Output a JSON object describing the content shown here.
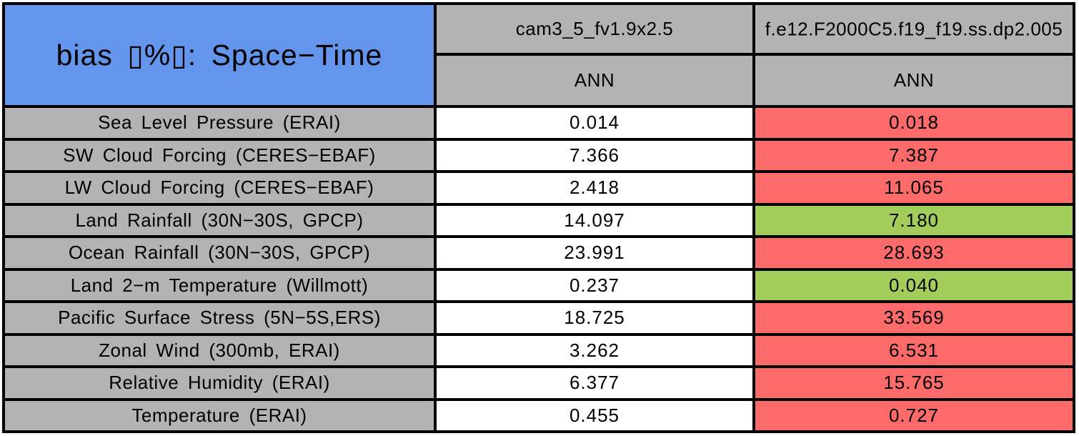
{
  "palette": {
    "header_blue": "#6495ED",
    "label_gray": "#B3B3B3",
    "bad_red": "#FC6A6A",
    "good_green": "#A2CD5A",
    "value_white": "#FFFFFF",
    "grid_black": "#000000"
  },
  "header": {
    "title": "bias ▯%▯: Space−Time",
    "columns": [
      {
        "model": "cam3_5_fv1.9x2.5",
        "season": "ANN"
      },
      {
        "model": "f.e12.F2000C5.f19_f19.ss.dp2.005",
        "season": "ANN"
      }
    ]
  },
  "rows": [
    {
      "label": "Sea Level Pressure (ERAI)",
      "cells": [
        {
          "text": "0.014",
          "bg": "#FFFFFF"
        },
        {
          "text": "0.018",
          "bg": "#FC6A6A"
        }
      ]
    },
    {
      "label": "SW Cloud Forcing (CERES−EBAF)",
      "cells": [
        {
          "text": "7.366",
          "bg": "#FFFFFF"
        },
        {
          "text": "7.387",
          "bg": "#FC6A6A"
        }
      ]
    },
    {
      "label": "LW Cloud Forcing (CERES−EBAF)",
      "cells": [
        {
          "text": "2.418",
          "bg": "#FFFFFF"
        },
        {
          "text": "11.065",
          "bg": "#FC6A6A"
        }
      ]
    },
    {
      "label": "Land Rainfall (30N−30S, GPCP)",
      "cells": [
        {
          "text": "14.097",
          "bg": "#FFFFFF"
        },
        {
          "text": "7.180",
          "bg": "#A2CD5A"
        }
      ]
    },
    {
      "label": "Ocean Rainfall (30N−30S, GPCP)",
      "cells": [
        {
          "text": "23.991",
          "bg": "#FFFFFF"
        },
        {
          "text": "28.693",
          "bg": "#FC6A6A"
        }
      ]
    },
    {
      "label": "Land 2−m Temperature (Willmott)",
      "cells": [
        {
          "text": "0.237",
          "bg": "#FFFFFF"
        },
        {
          "text": "0.040",
          "bg": "#A2CD5A"
        }
      ]
    },
    {
      "label": "Pacific Surface Stress (5N−5S,ERS)",
      "cells": [
        {
          "text": "18.725",
          "bg": "#FFFFFF"
        },
        {
          "text": "33.569",
          "bg": "#FC6A6A"
        }
      ]
    },
    {
      "label": "Zonal Wind (300mb, ERAI)",
      "cells": [
        {
          "text": "3.262",
          "bg": "#FFFFFF"
        },
        {
          "text": "6.531",
          "bg": "#FC6A6A"
        }
      ]
    },
    {
      "label": "Relative Humidity (ERAI)",
      "cells": [
        {
          "text": "6.377",
          "bg": "#FFFFFF"
        },
        {
          "text": "15.765",
          "bg": "#FC6A6A"
        }
      ]
    },
    {
      "label": "Temperature (ERAI)",
      "cells": [
        {
          "text": "0.455",
          "bg": "#FFFFFF"
        },
        {
          "text": "0.727",
          "bg": "#FC6A6A"
        }
      ]
    }
  ],
  "chart_data": {
    "type": "table",
    "title": "bias ▯%▯: Space−Time",
    "columns": [
      "cam3_5_fv1.9x2.5 (ANN)",
      "f.e12.F2000C5.f19_f19.ss.dp2.005 (ANN)"
    ],
    "categories": [
      "Sea Level Pressure (ERAI)",
      "SW Cloud Forcing (CERES−EBAF)",
      "LW Cloud Forcing (CERES−EBAF)",
      "Land Rainfall (30N−30S, GPCP)",
      "Ocean Rainfall (30N−30S, GPCP)",
      "Land 2−m Temperature (Willmott)",
      "Pacific Surface Stress (5N−5S,ERS)",
      "Zonal Wind (300mb, ERAI)",
      "Relative Humidity (ERAI)",
      "Temperature (ERAI)"
    ],
    "series": [
      {
        "name": "cam3_5_fv1.9x2.5",
        "values": [
          0.014,
          7.366,
          2.418,
          14.097,
          23.991,
          0.237,
          18.725,
          3.262,
          6.377,
          0.455
        ]
      },
      {
        "name": "f.e12.F2000C5.f19_f19.ss.dp2.005",
        "values": [
          0.018,
          7.387,
          11.065,
          7.18,
          28.693,
          0.04,
          33.569,
          6.531,
          15.765,
          0.727
        ]
      }
    ],
    "second_series_flag": [
      "worse",
      "worse",
      "worse",
      "better",
      "worse",
      "better",
      "worse",
      "worse",
      "worse",
      "worse"
    ],
    "flag_colors": {
      "worse": "#FC6A6A",
      "better": "#A2CD5A"
    }
  }
}
